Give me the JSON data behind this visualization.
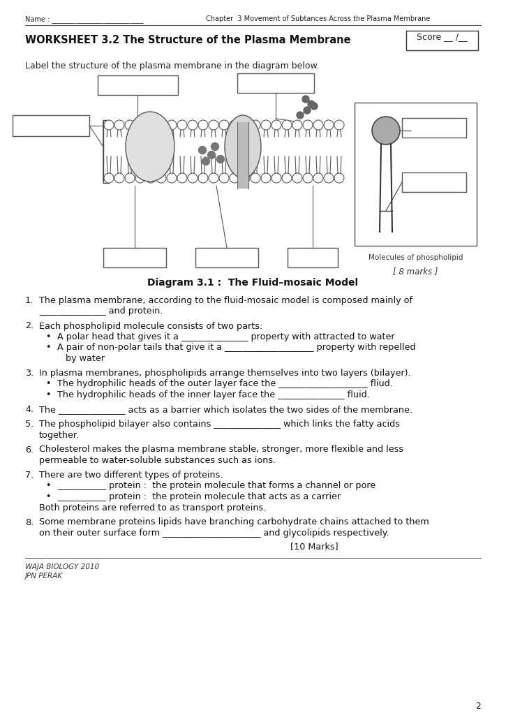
{
  "bg_color": "#ffffff",
  "page_width": 7.25,
  "page_height": 10.24,
  "header_name_label": "Name : ___________________________",
  "header_chapter": "Chapter  3 Movement of Subtances Across the Plasma Membrane",
  "worksheet_title": "WORKSHEET 3.2 The Structure of the Plasma Membrane",
  "score_box_text": "Score __ /__",
  "label_instruction": "Label the structure of the plasma membrane in the diagram below.",
  "diagram_caption": "Diagram 3.1 :  The Fluid–mosaic Model",
  "marks_diagram": "[ 8 marks ]",
  "molecules_label": "Molecules of phospholipid",
  "marks_questions": "[10 Marks]",
  "footer_line1": "WAJA BIOLOGY 2010",
  "footer_line2": "JPN PERAK",
  "page_num": "2"
}
